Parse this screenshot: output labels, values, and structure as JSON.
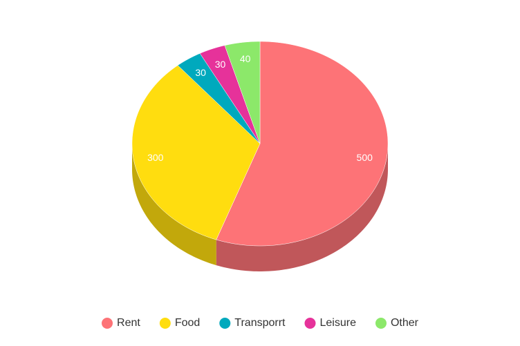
{
  "chart_data": {
    "type": "pie",
    "categories": [
      "Rent",
      "Food",
      "Transporrt",
      "Leisure",
      "Other"
    ],
    "values": [
      500,
      300,
      30,
      30,
      40
    ],
    "colors": [
      "#fd7377",
      "#ffdd0f",
      "#00a9bd",
      "#e6329a",
      "#8ce86a"
    ],
    "legend": "bottom"
  }
}
